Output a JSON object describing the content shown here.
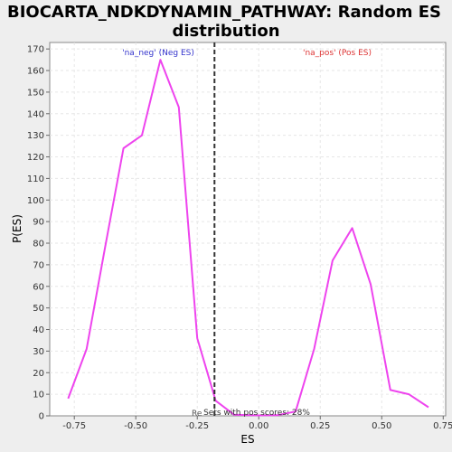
{
  "chart_data": {
    "type": "line",
    "title_line1": "BIOCARTA_NDKDYNAMIN_PATHWAY: Random ES",
    "title_line2": "distribution",
    "xlabel": "ES",
    "ylabel": "P(ES)",
    "xlim": [
      -0.85,
      0.76
    ],
    "ylim": [
      0,
      173
    ],
    "x_ticks": [
      "-0.75",
      "-0.50",
      "-0.25",
      "0.00",
      "0.25",
      "0.50",
      "0.75"
    ],
    "x_tick_values": [
      -0.75,
      -0.5,
      -0.25,
      0.0,
      0.25,
      0.5,
      0.75
    ],
    "y_ticks": [
      "0",
      "10",
      "20",
      "30",
      "40",
      "50",
      "60",
      "70",
      "80",
      "90",
      "100",
      "110",
      "120",
      "130",
      "140",
      "150",
      "160",
      "170"
    ],
    "y_tick_values": [
      0,
      10,
      20,
      30,
      40,
      50,
      60,
      70,
      80,
      90,
      100,
      110,
      120,
      130,
      140,
      150,
      160,
      170
    ],
    "grid": true,
    "series": [
      {
        "color": "#ee44ee",
        "x": [
          -0.775,
          -0.7,
          -0.625,
          -0.55,
          -0.475,
          -0.4,
          -0.325,
          -0.25,
          -0.175,
          -0.1,
          0.0,
          0.075,
          0.15,
          0.225,
          0.3,
          0.38,
          0.455,
          0.535,
          0.61,
          0.69
        ],
        "y": [
          8,
          31,
          78,
          124,
          130,
          165,
          143,
          36,
          7,
          0.5,
          0.2,
          0.3,
          2,
          31,
          72,
          87,
          61,
          12,
          10,
          4
        ]
      }
    ],
    "vline": {
      "x": -0.18,
      "color": "#333333"
    },
    "annotations": {
      "neg_label": "'na_neg' (Neg ES)",
      "neg_color": "#3333cc",
      "pos_label": "'na_pos' (Pos ES)",
      "pos_color": "#dd3333",
      "bottom_left": "Re",
      "bottom_note": "Sets with pos scores: 28%"
    }
  }
}
